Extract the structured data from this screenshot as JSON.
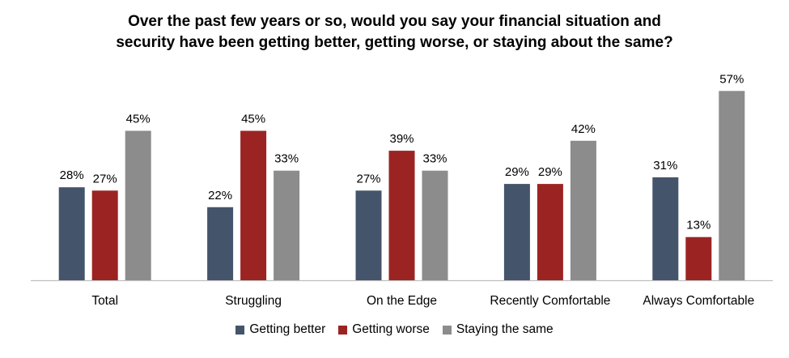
{
  "chart_data": {
    "type": "bar",
    "title_lines": [
      "Over the past few years or so, would you say your financial situation and",
      "security have been getting better, getting worse, or staying about the same?"
    ],
    "categories": [
      "Total",
      "Struggling",
      "On the Edge",
      "Recently Comfortable",
      "Always Comfortable"
    ],
    "series": [
      {
        "name": "Getting better",
        "values": [
          28,
          22,
          27,
          29,
          31
        ],
        "color": "#44546A"
      },
      {
        "name": "Getting worse",
        "values": [
          27,
          45,
          39,
          29,
          13
        ],
        "color": "#9B2423"
      },
      {
        "name": "Staying the same",
        "values": [
          45,
          33,
          33,
          42,
          57
        ],
        "color": "#8C8C8C"
      }
    ],
    "value_suffix": "%",
    "ylim": [
      0,
      60
    ],
    "grid": false,
    "legend_position": "bottom"
  }
}
